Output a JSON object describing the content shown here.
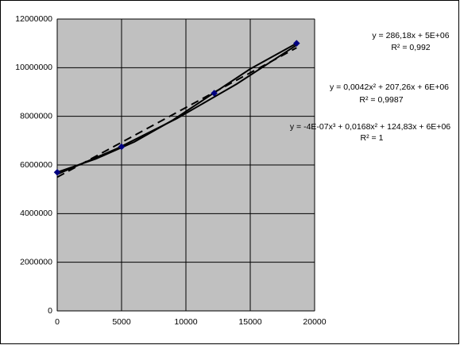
{
  "chart_data": {
    "type": "scatter",
    "x": [
      0,
      5000,
      12200,
      18600
    ],
    "values": [
      5700000,
      6750000,
      8950000,
      11000000
    ],
    "color": "#000080",
    "xlim": [
      0,
      20000
    ],
    "xticks": [
      0,
      5000,
      10000,
      15000,
      20000
    ],
    "ylim": [
      0,
      12000000
    ],
    "yticks": [
      0,
      2000000,
      4000000,
      6000000,
      8000000,
      10000000,
      12000000
    ],
    "grid": true,
    "plot_background": "#c0c0c0",
    "trendlines": [
      {
        "style": "dashed",
        "equation": "y = 286,18x + 5E+06",
        "r2": "R² = 0,992",
        "x": [
          0,
          18600
        ],
        "values": [
          5500000,
          10820000
        ]
      },
      {
        "style": "solid",
        "equation": "y = 0,0042x² + 207,26x + 6E+06",
        "r2": "R² = 0,9987",
        "x": [
          0,
          4650,
          9300,
          13950,
          18600
        ],
        "values": [
          5620000,
          6675000,
          7910000,
          9330000,
          10930000
        ]
      },
      {
        "style": "solid",
        "equation": "y = -4E-07x³ + 0,0168x² + 124,83x + 6E+06",
        "r2": "R² = 1",
        "x": [
          0,
          3000,
          6000,
          9000,
          12000,
          15000,
          18600
        ],
        "values": [
          5700000,
          6250000,
          6950000,
          7850000,
          8900000,
          9950000,
          11000000
        ]
      }
    ]
  }
}
